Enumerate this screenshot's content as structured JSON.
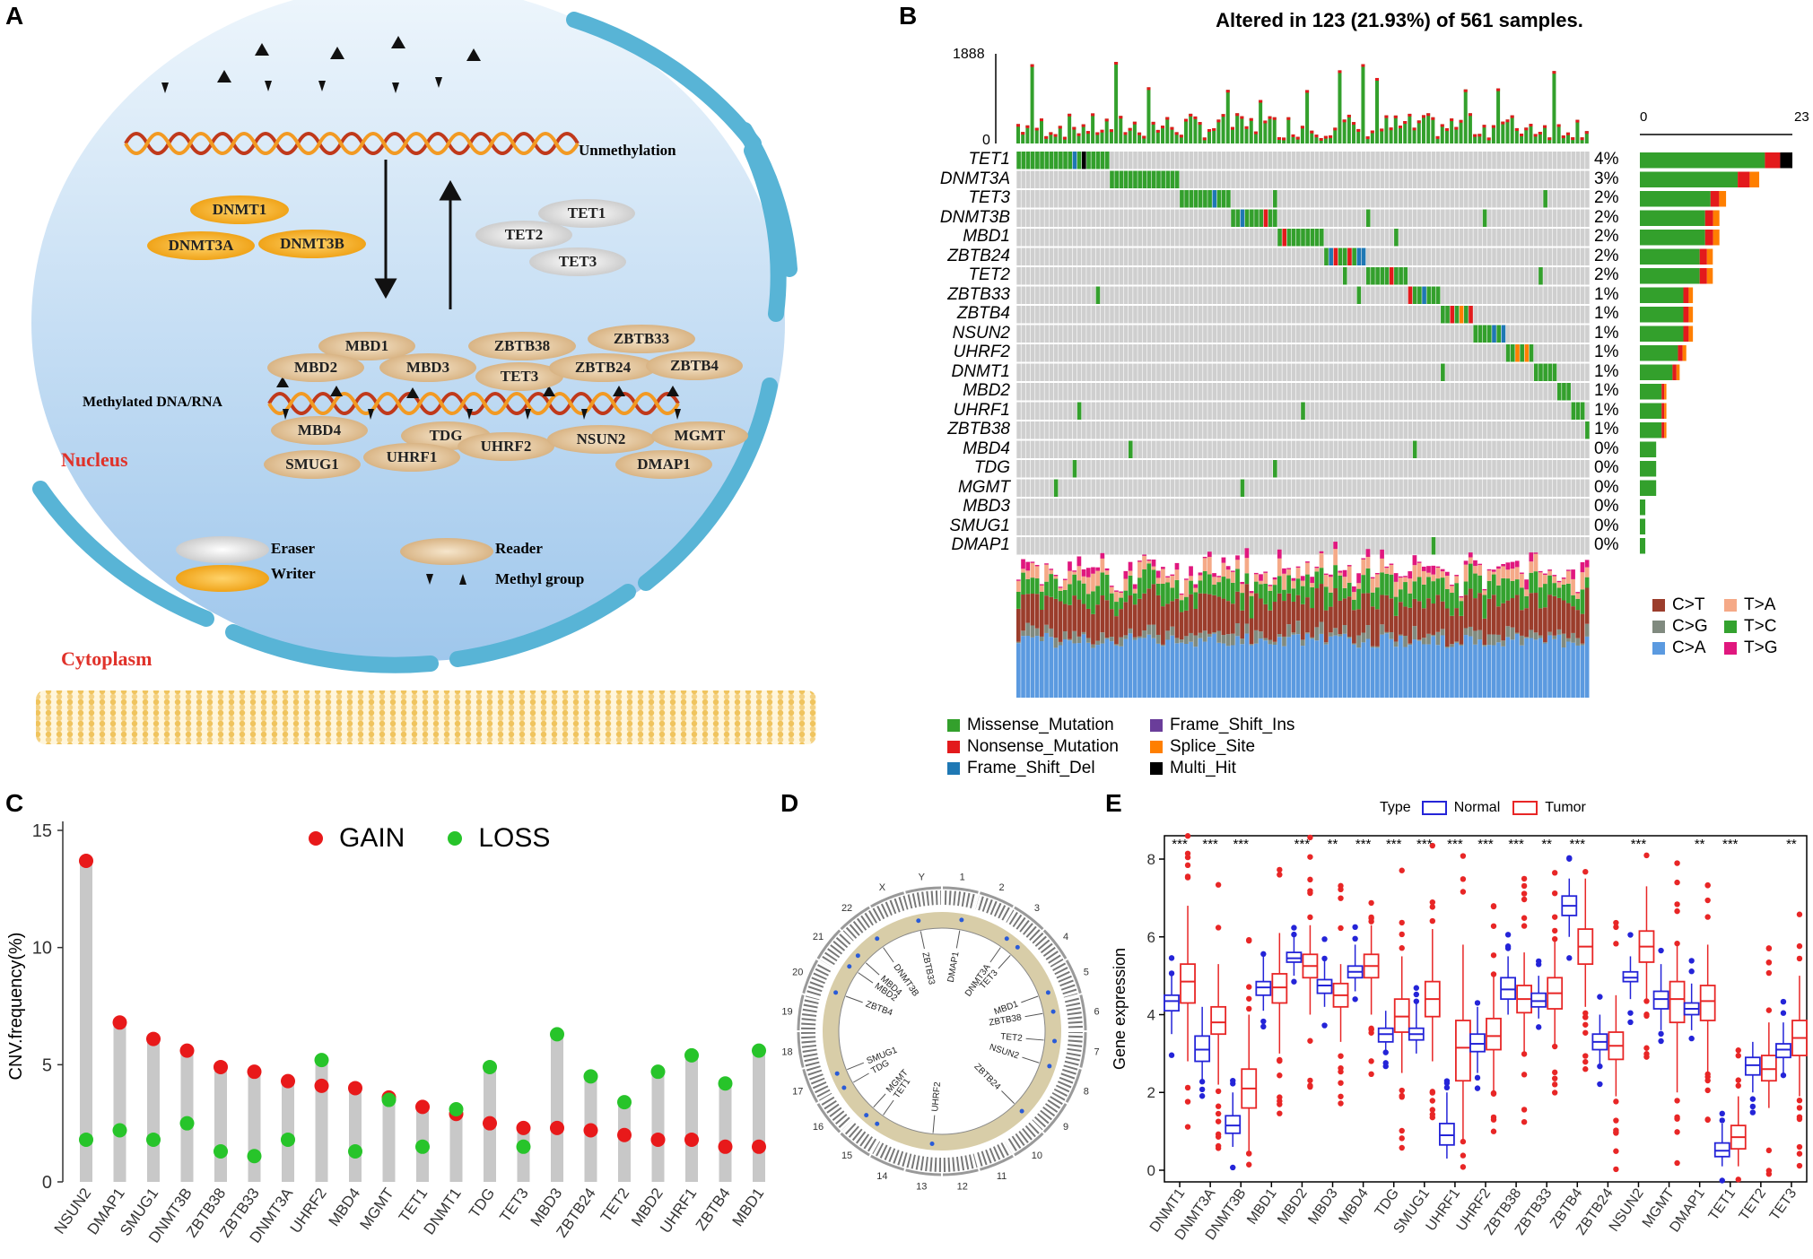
{
  "panels": {
    "a": "A",
    "b": "B",
    "c": "C",
    "d": "D",
    "e": "E"
  },
  "panelA": {
    "unmethylation": "Unmethylation",
    "methylated": "Methylated DNA/RNA",
    "nucleus": "Nucleus",
    "cytoplasm": "Cytoplasm",
    "writers": [
      "DNMT1",
      "DNMT3A",
      "DNMT3B"
    ],
    "erasers": [
      "TET1",
      "TET2",
      "TET3"
    ],
    "readers_top": [
      "MBD1",
      "ZBTB38",
      "ZBTB33",
      "MBD2",
      "MBD3",
      "TET3",
      "ZBTB24",
      "ZBTB4"
    ],
    "readers_bottom": [
      "MBD4",
      "TDG",
      "UHRF2",
      "NSUN2",
      "MGMT",
      "SMUG1",
      "UHRF1",
      "DMAP1"
    ],
    "legend": {
      "eraser": "Eraser",
      "writer": "Writer",
      "reader": "Reader",
      "methyl": "Methyl group"
    },
    "colors": {
      "writer": "#f0a41a",
      "eraser": "#c8c8c8",
      "reader": "#d6b080",
      "nucleus_top": "#eaf3fb",
      "nucleus_bottom": "#a9cdee",
      "membrane": "#5ab5d6",
      "label_red": "#e0322a"
    }
  },
  "panelB": {
    "title": "Altered in 123 (21.93%) of 561 samples.",
    "tmb_max": "1888",
    "tmb_min": "0",
    "bar_min": "0",
    "bar_max": "23",
    "genes": [
      "TET1",
      "DNMT3A",
      "TET3",
      "DNMT3B",
      "MBD1",
      "ZBTB24",
      "TET2",
      "ZBTB33",
      "ZBTB4",
      "NSUN2",
      "UHRF2",
      "DNMT1",
      "MBD2",
      "UHRF1",
      "ZBTB38",
      "MBD4",
      "TDG",
      "MGMT",
      "MBD3",
      "SMUG1",
      "DMAP1"
    ],
    "pcts": [
      "4%",
      "3%",
      "2%",
      "2%",
      "2%",
      "2%",
      "2%",
      "1%",
      "1%",
      "1%",
      "1%",
      "1%",
      "1%",
      "1%",
      "1%",
      "0%",
      "0%",
      "0%",
      "0%",
      "0%",
      "0%"
    ],
    "gene_counts": [
      23,
      18,
      13,
      12,
      12,
      11,
      11,
      8,
      8,
      8,
      7,
      6,
      4,
      4,
      4,
      3,
      3,
      3,
      1,
      1,
      1
    ],
    "mutation_legend": [
      "Missense_Mutation",
      "Nonsense_Mutation",
      "Frame_Shift_Del",
      "Frame_Shift_Ins",
      "Splice_Site",
      "Multi_Hit"
    ],
    "mutation_colors": [
      "#33a02c",
      "#e31a1c",
      "#1f78b4",
      "#6a3d9a",
      "#ff7f00",
      "#000000"
    ],
    "titv_legend": [
      "C>T",
      "C>G",
      "C>A",
      "T>A",
      "T>C",
      "T>G"
    ],
    "titv_colors": [
      "#9b3d2c",
      "#808a7f",
      "#5b9ae0",
      "#f5a987",
      "#34a22f",
      "#e0177e"
    ],
    "titv_mean": [
      0.26,
      0.05,
      0.45,
      0.08,
      0.14,
      0.02
    ]
  },
  "panelC": {
    "chart_data": {
      "type": "scatter",
      "title": "",
      "xlabel": "",
      "ylabel": "CNV.frequency(%)",
      "ylim": [
        0,
        15
      ],
      "yticks": [
        "0",
        "5",
        "10",
        "15"
      ],
      "categories": [
        "NSUN2",
        "DMAP1",
        "SMUG1",
        "DNMT3B",
        "ZBTB38",
        "ZBTB33",
        "DNMT3A",
        "UHRF2",
        "MBD4",
        "MGMT",
        "TET1",
        "DNMT1",
        "TDG",
        "TET3",
        "MBD3",
        "ZBTB24",
        "TET2",
        "MBD2",
        "UHRF1",
        "ZBTB4",
        "MBD1"
      ],
      "series": [
        {
          "name": "GAIN",
          "color": "#e8191a",
          "values": [
            13.7,
            6.8,
            6.1,
            5.6,
            4.9,
            4.7,
            4.3,
            4.1,
            4.0,
            3.6,
            3.2,
            2.9,
            2.5,
            2.3,
            2.3,
            2.2,
            2.0,
            1.8,
            1.8,
            1.5,
            1.5
          ]
        },
        {
          "name": "LOSS",
          "color": "#27c42a",
          "values": [
            1.8,
            2.2,
            1.8,
            2.5,
            1.3,
            1.1,
            1.8,
            5.2,
            1.3,
            3.5,
            1.5,
            3.1,
            4.9,
            1.5,
            6.3,
            4.5,
            3.4,
            4.7,
            5.4,
            4.2,
            5.6
          ]
        }
      ]
    }
  },
  "panelD": {
    "labels": [
      "DMAP1",
      "DNMT3A",
      "TET3",
      "MBD1",
      "ZBTB38",
      "TET2",
      "NSUN2",
      "ZBTB24",
      "UHRF2",
      "TET1",
      "MGMT",
      "TDG",
      "SMUG1",
      "ZBTB4",
      "MBD2",
      "MBD4",
      "DNMT3B",
      "ZBTB33"
    ],
    "chromosomes": [
      "1",
      "2",
      "3",
      "4",
      "5",
      "6",
      "7",
      "8",
      "9",
      "10",
      "11",
      "12",
      "13",
      "14",
      "15",
      "16",
      "17",
      "18",
      "19",
      "20",
      "21",
      "22",
      "X",
      "Y"
    ]
  },
  "panelE": {
    "chart_data": {
      "type": "box",
      "title": "",
      "legend_title": "Type",
      "xlabel": "",
      "ylabel": "Gene expression",
      "ylim": [
        -0.3,
        8.6
      ],
      "yticks": [
        "0",
        "2",
        "4",
        "6",
        "8"
      ],
      "categories": [
        "DNMT1",
        "DNMT3A",
        "DNMT3B",
        "MBD1",
        "MBD2",
        "MBD3",
        "MBD4",
        "TDG",
        "SMUG1",
        "UHRF1",
        "UHRF2",
        "ZBTB38",
        "ZBTB33",
        "ZBTB4",
        "ZBTB24",
        "NSUN2",
        "MGMT",
        "DMAP1",
        "TET1",
        "TET2",
        "TET3"
      ],
      "significance": [
        "***",
        "***",
        "***",
        "",
        "***",
        "**",
        "***",
        "***",
        "***",
        "***",
        "***",
        "***",
        "**",
        "***",
        "",
        "***",
        "",
        "**",
        "***",
        "",
        "**"
      ],
      "series": [
        {
          "name": "Normal",
          "color": "#2424d8",
          "median": [
            4.35,
            3.1,
            1.15,
            4.7,
            5.45,
            4.75,
            5.1,
            3.5,
            3.5,
            0.9,
            3.25,
            4.65,
            4.35,
            6.8,
            3.3,
            4.95,
            4.4,
            4.15,
            0.5,
            2.7,
            3.1
          ],
          "q1": [
            4.1,
            2.8,
            0.95,
            4.5,
            5.35,
            4.55,
            4.95,
            3.3,
            3.35,
            0.65,
            3.05,
            4.4,
            4.2,
            6.55,
            3.1,
            4.85,
            4.15,
            4.0,
            0.35,
            2.45,
            2.9
          ],
          "q3": [
            4.5,
            3.45,
            1.4,
            4.85,
            5.6,
            4.9,
            5.25,
            3.65,
            3.65,
            1.2,
            3.5,
            4.95,
            4.55,
            7.05,
            3.5,
            5.1,
            4.6,
            4.3,
            0.7,
            2.9,
            3.25
          ],
          "min": [
            3.5,
            2.3,
            0.6,
            4.1,
            5.0,
            4.2,
            4.6,
            3.1,
            3.0,
            0.3,
            2.5,
            4.0,
            3.9,
            6.0,
            2.7,
            4.4,
            3.6,
            3.6,
            0.1,
            2.0,
            2.5
          ],
          "max": [
            5.0,
            4.2,
            2.0,
            5.5,
            6.0,
            5.4,
            5.8,
            4.1,
            4.3,
            2.0,
            4.2,
            5.5,
            5.0,
            7.5,
            4.0,
            5.5,
            5.3,
            4.8,
            1.2,
            3.3,
            3.8
          ]
        },
        {
          "name": "Tumor",
          "color": "#e82626",
          "median": [
            4.85,
            3.8,
            2.1,
            4.7,
            5.25,
            4.5,
            5.25,
            3.95,
            4.4,
            3.15,
            3.45,
            4.4,
            4.55,
            5.75,
            3.2,
            5.75,
            4.4,
            4.35,
            0.85,
            2.6,
            3.4
          ],
          "q1": [
            4.3,
            3.5,
            1.6,
            4.3,
            4.95,
            4.2,
            4.95,
            3.55,
            3.95,
            2.3,
            3.1,
            4.05,
            4.15,
            5.3,
            2.85,
            5.35,
            3.8,
            3.85,
            0.55,
            2.3,
            2.95
          ],
          "q3": [
            5.3,
            4.2,
            2.6,
            5.05,
            5.55,
            4.8,
            5.55,
            4.4,
            4.85,
            3.85,
            3.9,
            4.75,
            4.95,
            6.2,
            3.55,
            6.15,
            4.85,
            4.75,
            1.15,
            2.95,
            3.85
          ],
          "min": [
            2.8,
            2.2,
            0.5,
            3.0,
            4.0,
            3.3,
            4.0,
            2.5,
            2.8,
            0.8,
            2.0,
            3.0,
            3.2,
            4.2,
            1.9,
            4.4,
            2.0,
            2.5,
            0.1,
            1.6,
            1.9
          ],
          "max": [
            6.8,
            5.3,
            4.0,
            6.1,
            6.3,
            5.3,
            6.3,
            5.5,
            6.2,
            5.8,
            5.0,
            5.6,
            5.9,
            7.5,
            4.5,
            7.3,
            5.8,
            5.8,
            1.9,
            3.8,
            5.0
          ]
        }
      ]
    }
  }
}
